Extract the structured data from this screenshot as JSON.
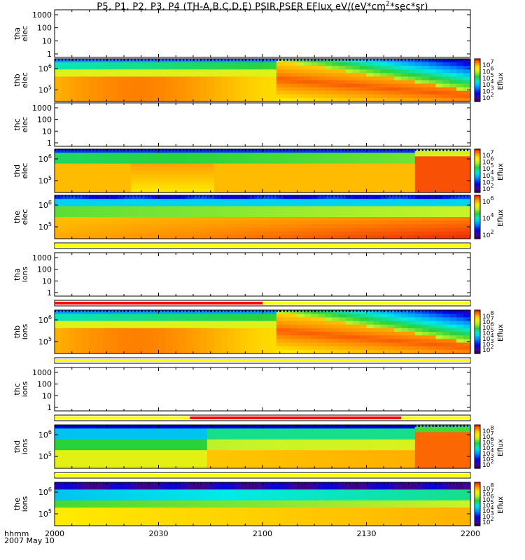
{
  "title": {
    "main": "P5, P1, P2, P3, P4 (TH-A,B,C,D,E) PSIR,PSER EFlux eV/(eV*cm",
    "sup": "2",
    "tail": "*sec*sr)"
  },
  "footer": {
    "line1": "hhmm",
    "line2": "2007 May 10"
  },
  "colors": {
    "flag_yellow": "#ffff00",
    "flag_red": "#ff0000",
    "frame": "#000000"
  },
  "chart_data": {
    "type": "heatmap",
    "x_ticks": [
      "2000",
      "2030",
      "2100",
      "2130",
      "2200"
    ],
    "x_range_minutes": [
      0,
      120
    ],
    "panels": [
      {
        "id": "tha-elec",
        "label": [
          "tha",
          "elec"
        ],
        "kind": "empty",
        "yticks": [
          "1000",
          "100",
          "10",
          "1"
        ]
      },
      {
        "id": "thb-elec",
        "label": [
          "thb",
          "elec"
        ],
        "kind": "spec",
        "yticks": [
          "10^6",
          "10^5"
        ],
        "colorbar": [
          "10^7",
          "10^6",
          "10^5",
          "10^4",
          "10^3",
          "10^2"
        ],
        "cb_label": "Eflux"
      },
      {
        "id": "thc-elec",
        "label": [
          "thc",
          "elec"
        ],
        "kind": "empty",
        "yticks": [
          "1000",
          "100",
          "10",
          "1"
        ]
      },
      {
        "id": "thd-elec",
        "label": [
          "thd",
          "elec"
        ],
        "kind": "spec",
        "yticks": [
          "10^6",
          "10^5"
        ],
        "colorbar": [
          "10^7",
          "10^6",
          "10^5",
          "10^4",
          "10^3",
          "10^2"
        ],
        "cb_label": "Eflux"
      },
      {
        "id": "the-elec",
        "label": [
          "the",
          "elec"
        ],
        "kind": "spec",
        "yticks": [
          "10^6",
          "10^5"
        ],
        "colorbar": [
          "10^6",
          "10^4",
          "10^2"
        ],
        "cb_label": "Eflux"
      },
      {
        "id": "tha-ions",
        "label": [
          "tha",
          "ions"
        ],
        "kind": "empty",
        "yticks": [
          "1000",
          "100",
          "10",
          "1"
        ]
      },
      {
        "id": "thb-ions",
        "label": [
          "thb",
          "ions"
        ],
        "kind": "spec",
        "yticks": [
          "10^6",
          "10^5"
        ],
        "colorbar": [
          "10^8",
          "10^7",
          "10^6",
          "10^5",
          "10^4",
          "10^3",
          "10^2"
        ],
        "cb_label": "Eflux"
      },
      {
        "id": "thc-ions",
        "label": [
          "thc",
          "ions"
        ],
        "kind": "empty",
        "yticks": [
          "1000",
          "100",
          "10",
          "1"
        ]
      },
      {
        "id": "thd-ions",
        "label": [
          "thd",
          "ions"
        ],
        "kind": "spec",
        "yticks": [
          "10^6",
          "10^5"
        ],
        "colorbar": [
          "10^8",
          "10^7",
          "10^6",
          "10^5",
          "10^4",
          "10^3",
          "10^2"
        ],
        "cb_label": "Eflux"
      },
      {
        "id": "the-ions",
        "label": [
          "the",
          "ions"
        ],
        "kind": "spec",
        "yticks": [
          "10^6",
          "10^5"
        ],
        "colorbar": [
          "10^8",
          "10^7",
          "10^6",
          "10^5",
          "10^4",
          "10^3",
          "10^2"
        ],
        "cb_label": "Eflux"
      }
    ],
    "flag_bars": [
      {
        "id": "flag-1",
        "segments": [
          {
            "from": 0,
            "to": 120,
            "color": "yellow"
          }
        ]
      },
      {
        "id": "flag-2",
        "segments": [
          {
            "from": 0,
            "to": 60,
            "color": "red"
          },
          {
            "from": 60,
            "to": 120,
            "color": "yellow"
          }
        ]
      },
      {
        "id": "flag-3",
        "segments": [
          {
            "from": 0,
            "to": 120,
            "color": "yellow"
          }
        ]
      },
      {
        "id": "flag-4",
        "segments": [
          {
            "from": 0,
            "to": 39,
            "color": "yellow"
          },
          {
            "from": 39,
            "to": 100,
            "color": "red"
          },
          {
            "from": 100,
            "to": 120,
            "color": "yellow"
          }
        ]
      },
      {
        "id": "flag-5",
        "segments": [
          {
            "from": 0,
            "to": 120,
            "color": "yellow"
          }
        ]
      }
    ]
  }
}
